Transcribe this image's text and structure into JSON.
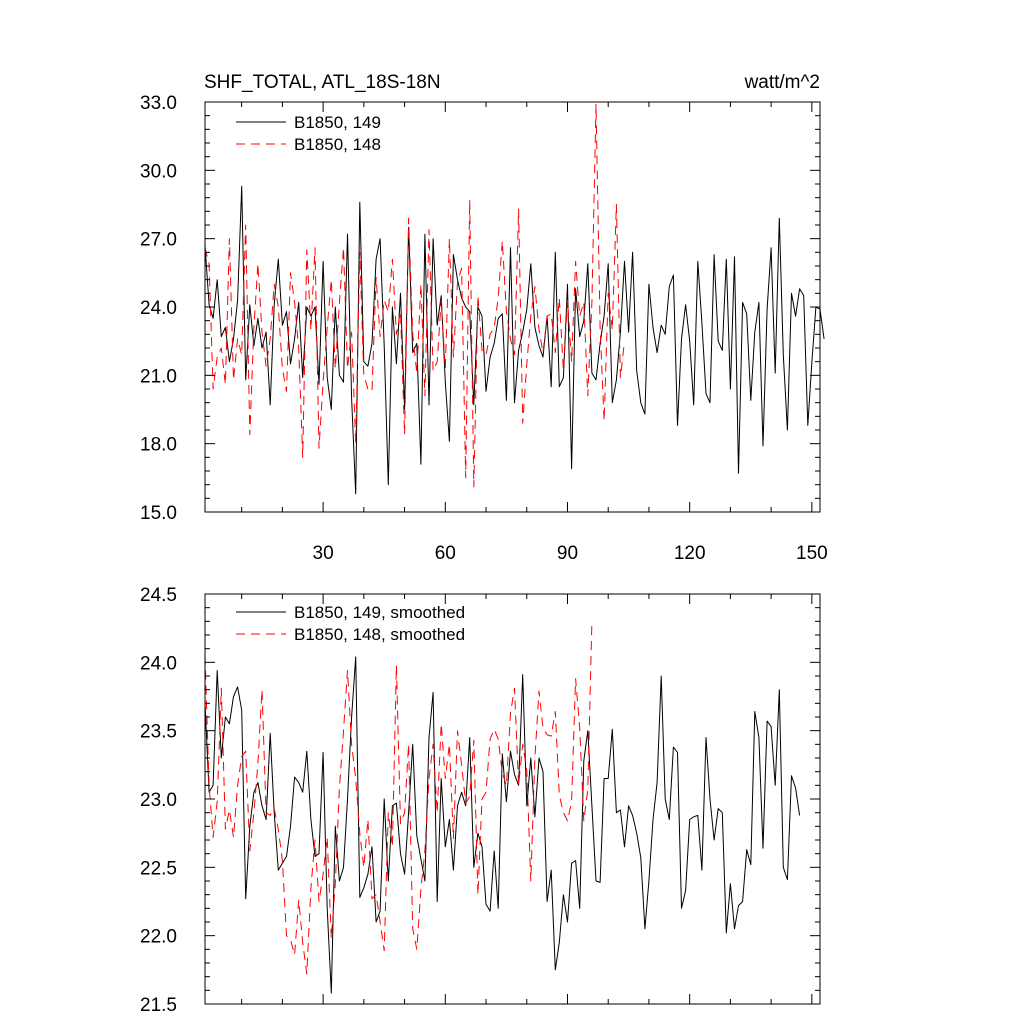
{
  "colors": {
    "series_149": "#000000",
    "series_148": "#ff0000"
  },
  "chart_data": [
    {
      "type": "line",
      "title": "SHF_TOTAL, ATL_18S-18N",
      "units": "watt/m^2",
      "xlim": [
        1,
        152
      ],
      "ylim": [
        15.0,
        33.0
      ],
      "ytick_labels": [
        "15.0",
        "18.0",
        "21.0",
        "24.0",
        "27.0",
        "30.0",
        "33.0"
      ],
      "xtick_labels": [
        "30",
        "60",
        "90",
        "120",
        "150"
      ],
      "xlabels_visible": true,
      "legend_position": "top-left",
      "series": [
        {
          "name": "B1850, 149",
          "style": "solid",
          "values": [
            26.7,
            24.1,
            23.5,
            25.2,
            22.7,
            23.1,
            21.6,
            22.6,
            24.3,
            29.3,
            20.8,
            24.1,
            22.3,
            23.5,
            22.2,
            22.9,
            19.7,
            24.1,
            26.1,
            23.2,
            23.8,
            21.5,
            22.6,
            24.2,
            20.9,
            24.0,
            23.6,
            24.0,
            20.6,
            26.0,
            20.9,
            19.5,
            24.0,
            21.0,
            20.7,
            27.2,
            20.0,
            15.8,
            28.6,
            21.6,
            21.4,
            22.4,
            26.1,
            27.0,
            22.3,
            16.2,
            24.0,
            21.5,
            24.6,
            19.5,
            27.5,
            22.0,
            22.4,
            17.1,
            27.2,
            19.7,
            27.0,
            23.2,
            24.5,
            20.7,
            18.1,
            26.3,
            25.2,
            24.4,
            24.0,
            23.8,
            19.7,
            24.0,
            23.6,
            20.3,
            21.8,
            22.4,
            23.5,
            23.7,
            19.9,
            26.6,
            19.8,
            22.1,
            22.9,
            23.9,
            25.9,
            23.1,
            22.3,
            21.8,
            23.6,
            20.5,
            26.4,
            20.5,
            20.9,
            25.0,
            16.9,
            24.8,
            22.7,
            23.4,
            25.9,
            21.1,
            20.8,
            22.4,
            23.6,
            25.9,
            19.8,
            20.8,
            22.9,
            26.0,
            22.9,
            26.4,
            21.2,
            19.8,
            19.3,
            25.0,
            23.1,
            22.0,
            23.2,
            22.8,
            24.9,
            25.4,
            18.8,
            22.6,
            24.1,
            22.5,
            19.7,
            26.0,
            23.3,
            20.2,
            19.8,
            26.3,
            22.5,
            22.1,
            26.1,
            20.4,
            26.2,
            16.7,
            24.2,
            23.7,
            19.9,
            22.9,
            24.2,
            17.9,
            23.9,
            26.6,
            21.1,
            27.9,
            21.9,
            18.6,
            24.6,
            23.6,
            24.8,
            24.5,
            18.8,
            21.6,
            24.0,
            23.9,
            22.6
          ]
        },
        {
          "name": "B1850, 148",
          "style": "dashed",
          "values": [
            26.6,
            25.9,
            20.4,
            21.8,
            22.2,
            20.6,
            27.0,
            20.8,
            22.6,
            21.9,
            27.6,
            18.4,
            23.1,
            25.9,
            22.9,
            21.4,
            22.6,
            25.0,
            24.0,
            21.3,
            20.3,
            25.5,
            24.2,
            22.2,
            17.4,
            26.5,
            23.0,
            26.6,
            17.8,
            20.7,
            23.1,
            25.2,
            21.3,
            24.2,
            26.6,
            21.3,
            22.9,
            18.0,
            26.4,
            21.0,
            20.4,
            20.3,
            25.3,
            22.7,
            24.3,
            23.8,
            26.1,
            22.8,
            23.8,
            18.4,
            27.9,
            22.8,
            21.1,
            25.0,
            20.1,
            27.4,
            21.2,
            21.6,
            24.3,
            21.3,
            27.0,
            21.8,
            25.1,
            25.7,
            16.5,
            28.7,
            16.1,
            24.5,
            22.1,
            21.9,
            22.8,
            23.1,
            24.4,
            26.9,
            23.8,
            22.6,
            21.9,
            28.3,
            18.9,
            21.5,
            23.6,
            24.9,
            23.0,
            22.0,
            23.6,
            23.7,
            22.0,
            24.4,
            21.2,
            24.3,
            21.6,
            26.0,
            23.6,
            24.2,
            20.1,
            24.2,
            32.9,
            23.1,
            19.0,
            24.6,
            23.0,
            28.5,
            20.9,
            22.5
          ]
        }
      ]
    },
    {
      "type": "line",
      "title": "",
      "xlim": [
        1,
        152
      ],
      "ylim": [
        21.5,
        24.5
      ],
      "ytick_labels": [
        "21.5",
        "22.0",
        "22.5",
        "23.0",
        "23.5",
        "24.0",
        "24.5"
      ],
      "xlabels_visible": false,
      "legend_position": "top-left",
      "series": [
        {
          "name": "B1850, 149, smoothed",
          "style": "solid",
          "values": [
            23.7,
            23.05,
            23.1,
            23.94,
            23.3,
            23.6,
            23.55,
            23.75,
            23.82,
            23.65,
            22.27,
            22.8,
            23.05,
            23.12,
            22.95,
            22.85,
            23.48,
            22.9,
            22.48,
            22.53,
            22.58,
            22.8,
            23.16,
            23.12,
            23.05,
            23.35,
            22.85,
            22.58,
            22.6,
            23.34,
            22.2,
            21.58,
            22.8,
            22.4,
            22.5,
            23.0,
            23.6,
            24.04,
            22.28,
            22.35,
            22.45,
            22.65,
            22.1,
            22.18,
            23.0,
            22.4,
            22.95,
            22.97,
            22.6,
            22.45,
            22.9,
            23.4,
            22.73,
            22.56,
            22.4,
            23.45,
            23.78,
            22.25,
            23.15,
            22.65,
            22.85,
            22.48,
            22.95,
            23.05,
            22.95,
            23.45,
            22.5,
            22.75,
            22.65,
            22.23,
            22.18,
            22.62,
            22.2,
            23.33,
            22.98,
            23.35,
            23.18,
            23.1,
            23.91,
            22.95,
            23.3,
            22.87,
            23.3,
            23.2,
            22.25,
            22.48,
            21.75,
            21.95,
            22.3,
            22.1,
            22.53,
            22.55,
            22.2,
            23.28,
            23.5,
            22.95,
            22.4,
            22.39,
            23.15,
            23.15,
            23.51,
            22.9,
            22.92,
            22.65,
            22.95,
            22.88,
            22.75,
            22.57,
            22.05,
            22.4,
            22.85,
            23.12,
            23.9,
            23.0,
            22.85,
            23.38,
            23.34,
            22.2,
            22.33,
            22.85,
            22.87,
            22.88,
            22.48,
            23.45,
            23.0,
            22.7,
            22.93,
            22.9,
            22.02,
            22.38,
            22.05,
            22.22,
            22.25,
            22.63,
            22.52,
            23.64,
            23.45,
            22.64,
            23.57,
            23.53,
            23.1,
            23.8,
            22.5,
            22.41,
            23.17,
            23.08,
            22.88
          ]
        },
        {
          "name": "B1850, 148, smoothed",
          "style": "dashed",
          "values": [
            24.05,
            23.1,
            22.72,
            22.98,
            23.81,
            22.78,
            22.92,
            22.72,
            23.1,
            23.31,
            23.35,
            22.62,
            22.9,
            23.26,
            23.8,
            22.9,
            22.88,
            22.93,
            22.78,
            22.55,
            22.0,
            21.97,
            21.86,
            22.26,
            21.95,
            21.72,
            22.35,
            22.7,
            22.25,
            22.45,
            22.72,
            21.98,
            22.38,
            23.08,
            23.5,
            23.94,
            23.4,
            23.15,
            22.75,
            22.5,
            22.85,
            22.27,
            22.3,
            22.1,
            21.89,
            22.9,
            22.65,
            23.98,
            22.82,
            22.9,
            23.4,
            22.05,
            21.9,
            22.34,
            22.62,
            23.15,
            23.4,
            22.9,
            23.55,
            23.15,
            23.4,
            22.71,
            23.5,
            23.25,
            22.97,
            23.02,
            23.43,
            22.3,
            23.0,
            23.05,
            23.44,
            23.51,
            23.44,
            23.19,
            23.1,
            23.63,
            23.81,
            23.1,
            23.4,
            23.21,
            22.4,
            23.3,
            23.79,
            23.52,
            23.47,
            23.46,
            23.64,
            23.03,
            22.9,
            22.84,
            22.98,
            23.88,
            23.52,
            22.84,
            23.07,
            24.3
          ]
        }
      ]
    }
  ]
}
